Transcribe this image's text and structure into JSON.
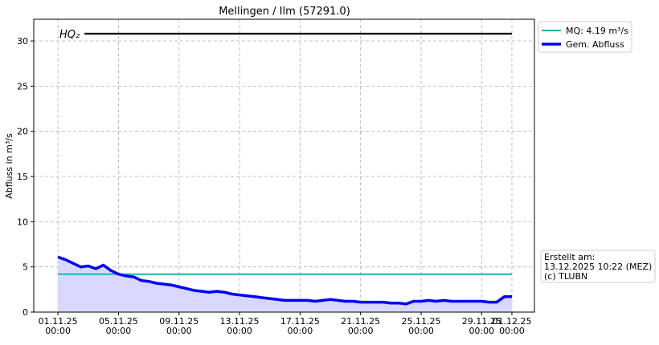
{
  "chart_data": {
    "type": "line",
    "title": "Mellingen / Ilm (57291.0)",
    "ylabel": "Abfluss in m³/s",
    "xlim": [
      "2025-10-30T09:36",
      "2025-12-02T11:45"
    ],
    "xticks": [
      {
        "value": "2025-11-01T00:00",
        "label": "01.11.25 00:00"
      },
      {
        "value": "2025-11-05T00:00",
        "label": "05.11.25 00:00"
      },
      {
        "value": "2025-11-09T00:00",
        "label": "09.11.25 00:00"
      },
      {
        "value": "2025-11-13T00:00",
        "label": "13.11.25 00:00"
      },
      {
        "value": "2025-11-17T00:00",
        "label": "17.11.25 00:00"
      },
      {
        "value": "2025-11-21T00:00",
        "label": "21.11.25 00:00"
      },
      {
        "value": "2025-11-25T00:00",
        "label": "25.11.25 00:00"
      },
      {
        "value": "2025-11-29T00:00",
        "label": "29.11.25 00:00"
      },
      {
        "value": "2025-12-01T00:00",
        "label": "01.12.25 00:00"
      }
    ],
    "ylim": [
      0,
      32.4
    ],
    "yticks": [
      0,
      5,
      10,
      15,
      20,
      25,
      30
    ],
    "grid": true,
    "legend": "upper right outside",
    "hlines": [
      {
        "label": "HQ₂",
        "value": 30.8,
        "color": "#000000",
        "x": [
          "2025-11-02T18:00",
          "2025-12-01T00:00"
        ]
      }
    ],
    "series": [
      {
        "name": "MQ: 4.19 m³/s",
        "color": "#20b2aa",
        "width": 2,
        "x": [
          "2025-11-01T00:00",
          "2025-12-01T00:00"
        ],
        "values": [
          4.19,
          4.19
        ]
      },
      {
        "name": "Gem. Abfluss",
        "color": "#0000ff",
        "width": 3.5,
        "fill": "#d8d8ff",
        "x": [
          "2025-11-01T00:00",
          "2025-11-01T12:00",
          "2025-11-02T00:00",
          "2025-11-02T12:00",
          "2025-11-03T00:00",
          "2025-11-03T12:00",
          "2025-11-04T00:00",
          "2025-11-04T12:00",
          "2025-11-05T00:00",
          "2025-11-05T12:00",
          "2025-11-06T00:00",
          "2025-11-06T12:00",
          "2025-11-07T00:00",
          "2025-11-07T12:00",
          "2025-11-08T00:00",
          "2025-11-08T12:00",
          "2025-11-09T00:00",
          "2025-11-09T12:00",
          "2025-11-10T00:00",
          "2025-11-10T12:00",
          "2025-11-11T00:00",
          "2025-11-11T12:00",
          "2025-11-12T00:00",
          "2025-11-12T12:00",
          "2025-11-13T00:00",
          "2025-11-13T12:00",
          "2025-11-14T00:00",
          "2025-11-14T12:00",
          "2025-11-15T00:00",
          "2025-11-15T12:00",
          "2025-11-16T00:00",
          "2025-11-16T12:00",
          "2025-11-17T00:00",
          "2025-11-17T12:00",
          "2025-11-18T00:00",
          "2025-11-18T12:00",
          "2025-11-19T00:00",
          "2025-11-19T12:00",
          "2025-11-20T00:00",
          "2025-11-20T12:00",
          "2025-11-21T00:00",
          "2025-11-21T12:00",
          "2025-11-22T00:00",
          "2025-11-22T12:00",
          "2025-11-23T00:00",
          "2025-11-23T12:00",
          "2025-11-24T00:00",
          "2025-11-24T12:00",
          "2025-11-25T00:00",
          "2025-11-25T12:00",
          "2025-11-26T00:00",
          "2025-11-26T12:00",
          "2025-11-27T00:00",
          "2025-11-27T12:00",
          "2025-11-28T00:00",
          "2025-11-28T12:00",
          "2025-11-29T00:00",
          "2025-11-29T12:00",
          "2025-11-30T00:00",
          "2025-11-30T12:00",
          "2025-12-01T00:00"
        ],
        "values": [
          6.1,
          5.8,
          5.4,
          5.0,
          5.1,
          4.8,
          5.2,
          4.6,
          4.2,
          4.0,
          3.9,
          3.5,
          3.4,
          3.2,
          3.1,
          3.0,
          2.8,
          2.6,
          2.4,
          2.3,
          2.2,
          2.3,
          2.2,
          2.0,
          1.9,
          1.8,
          1.7,
          1.6,
          1.5,
          1.4,
          1.3,
          1.3,
          1.3,
          1.3,
          1.2,
          1.3,
          1.4,
          1.3,
          1.2,
          1.2,
          1.1,
          1.1,
          1.1,
          1.1,
          1.0,
          1.0,
          0.9,
          1.2,
          1.2,
          1.3,
          1.2,
          1.3,
          1.2,
          1.2,
          1.2,
          1.2,
          1.2,
          1.1,
          1.1,
          1.7,
          1.7
        ]
      }
    ],
    "note": [
      "Erstellt am:",
      "13.12.2025 10:22 (MEZ)",
      "(c) TLUBN"
    ]
  }
}
